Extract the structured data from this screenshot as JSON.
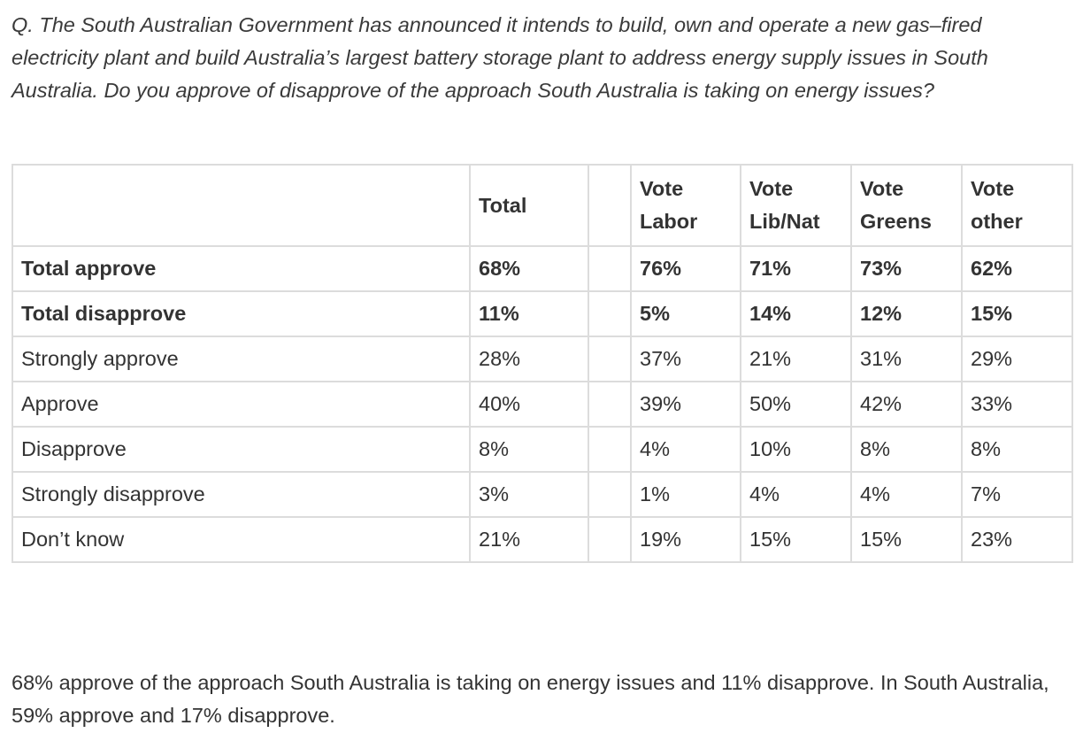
{
  "question": "Q. The South Australian Government has announced it intends to build, own and operate a new gas–fired electricity plant and build Australia’s largest battery storage plant to address energy supply issues in South Australia. Do you approve of disapprove of the approach South Australia is taking on energy issues?",
  "table": {
    "headers": [
      "",
      "Total",
      "",
      "Vote Labor",
      "Vote Lib/Nat",
      "Vote Greens",
      "Vote other"
    ],
    "rows": [
      {
        "label": "Total approve",
        "bold": true,
        "values": [
          "68%",
          "",
          "76%",
          "71%",
          "73%",
          "62%"
        ]
      },
      {
        "label": "Total disapprove",
        "bold": true,
        "values": [
          "11%",
          "",
          "5%",
          "14%",
          "12%",
          "15%"
        ]
      },
      {
        "label": "Strongly approve",
        "bold": false,
        "values": [
          "28%",
          "",
          "37%",
          "21%",
          "31%",
          "29%"
        ]
      },
      {
        "label": "Approve",
        "bold": false,
        "values": [
          "40%",
          "",
          "39%",
          "50%",
          "42%",
          "33%"
        ]
      },
      {
        "label": "Disapprove",
        "bold": false,
        "values": [
          "8%",
          "",
          "4%",
          "10%",
          "8%",
          "8%"
        ]
      },
      {
        "label": "Strongly disapprove",
        "bold": false,
        "values": [
          "3%",
          "",
          "1%",
          "4%",
          "4%",
          "7%"
        ]
      },
      {
        "label": "Don’t know",
        "bold": false,
        "values": [
          "21%",
          "",
          "19%",
          "15%",
          "15%",
          "23%"
        ]
      }
    ]
  },
  "summary": "68% approve of the approach South Australia is taking on energy issues and 11% disapprove. In South Australia, 59% approve and 17% disapprove."
}
